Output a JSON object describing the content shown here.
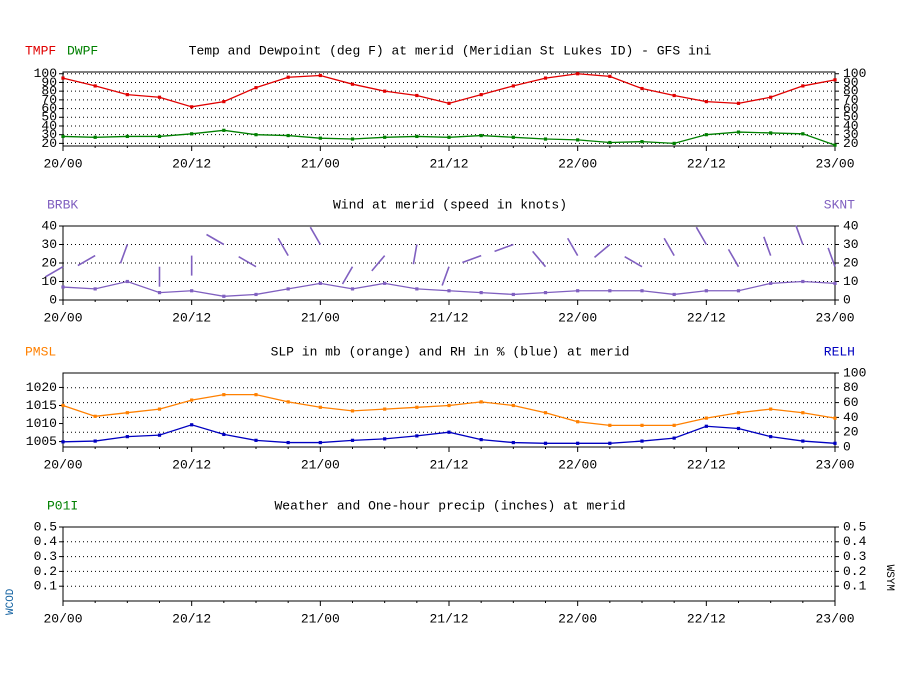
{
  "chart_data": [
    {
      "type": "line",
      "title": "Temp and Dewpoint (deg F) at merid (Meridian St Lukes ID) - GFS ini",
      "categories": [
        "20/00",
        null,
        null,
        null,
        "20/12",
        null,
        null,
        null,
        "21/00",
        null,
        null,
        null,
        "21/12",
        null,
        null,
        null,
        "22/00",
        null,
        null,
        null,
        "22/12",
        null,
        null,
        null,
        "23/00"
      ],
      "series": [
        {
          "name": "TMPF",
          "color": "#e00000",
          "values": [
            95,
            86,
            76,
            73,
            62,
            68,
            84,
            96,
            98,
            88,
            80,
            75,
            66,
            76,
            86,
            95,
            100,
            97,
            83,
            75,
            68,
            66,
            73,
            86,
            93
          ]
        },
        {
          "name": "DWPF",
          "color": "#008000",
          "values": [
            28,
            27,
            28,
            28,
            31,
            35,
            30,
            29,
            26,
            25,
            27,
            28,
            27,
            29,
            27,
            25,
            24,
            21,
            22,
            20,
            30,
            33,
            32,
            31,
            18
          ]
        }
      ],
      "ylim": [
        17,
        102
      ],
      "yticks": [
        20,
        30,
        40,
        50,
        60,
        70,
        80,
        90,
        100
      ],
      "y2lim": [
        17,
        102
      ],
      "y2ticks": [
        20,
        30,
        40,
        50,
        60,
        70,
        80,
        90,
        100
      ],
      "grid": true
    },
    {
      "type": "wind",
      "title": "Wind at  merid (speed in knots)",
      "categories": [
        "20/00",
        null,
        null,
        null,
        "20/12",
        null,
        null,
        null,
        "21/00",
        null,
        null,
        null,
        "21/12",
        null,
        null,
        null,
        "22/00",
        null,
        null,
        null,
        "22/12",
        null,
        null,
        null,
        "23/00"
      ],
      "series": [
        {
          "name": "SKNT",
          "color": "#8060c0",
          "axis": "y2",
          "values": [
            7,
            6,
            10,
            4,
            5,
            2,
            3,
            6,
            9,
            6,
            9,
            6,
            5,
            4,
            3,
            4,
            5,
            5,
            5,
            3,
            5,
            5,
            9,
            10,
            9
          ]
        }
      ],
      "barbs": {
        "name": "BRBK",
        "color": "#8060c0",
        "directions": [
          240,
          240,
          200,
          180,
          180,
          300,
          300,
          330,
          330,
          210,
          220,
          190,
          200,
          250,
          250,
          320,
          330,
          230,
          300,
          330,
          330,
          330,
          340,
          340,
          340
        ]
      },
      "ylim": [
        0,
        40
      ],
      "yticks": [
        0,
        10,
        20,
        30,
        40
      ],
      "y2lim": [
        0,
        40
      ],
      "y2ticks": [
        0,
        10,
        20,
        30,
        40
      ],
      "grid": true
    },
    {
      "type": "line",
      "title": "SLP in mb (orange) and RH in % (blue) at  merid",
      "categories": [
        "20/00",
        null,
        null,
        null,
        "20/12",
        null,
        null,
        null,
        "21/00",
        null,
        null,
        null,
        "21/12",
        null,
        null,
        null,
        "22/00",
        null,
        null,
        null,
        "22/12",
        null,
        null,
        null,
        "23/00"
      ],
      "series": [
        {
          "name": "PMSL",
          "color": "#ff8000",
          "values": [
            1015,
            1012,
            1013,
            1014,
            1016.5,
            1018,
            1018,
            1016,
            1014.5,
            1013.5,
            1014,
            1014.5,
            1015,
            1016,
            1015,
            1013,
            1010.5,
            1009.5,
            1009.5,
            1009.5,
            1011.5,
            1013,
            1014,
            1013,
            1011.5
          ]
        },
        {
          "name": "RELH",
          "color": "#0000c0",
          "axis": "y2",
          "values": [
            7,
            8,
            14,
            16,
            30,
            17,
            9,
            6,
            6,
            9,
            11,
            15,
            20,
            10,
            6,
            5,
            5,
            5,
            8,
            12,
            28,
            25,
            14,
            8,
            5
          ]
        }
      ],
      "ylim": [
        1003.5,
        1024
      ],
      "yticks": [
        1005,
        1010,
        1015,
        1020
      ],
      "y2lim": [
        0,
        100
      ],
      "y2ticks": [
        0,
        20,
        40,
        60,
        80,
        100
      ],
      "grid": true
    },
    {
      "type": "line",
      "title": "Weather and One-hour precip (inches) at  merid",
      "categories": [
        "20/00",
        null,
        null,
        null,
        "20/12",
        null,
        null,
        null,
        "21/00",
        null,
        null,
        null,
        "21/12",
        null,
        null,
        null,
        "22/00",
        null,
        null,
        null,
        "22/12",
        null,
        null,
        null,
        "23/00"
      ],
      "series": [
        {
          "name": "P01I",
          "color": "#008000",
          "values": [
            null,
            null,
            null,
            null,
            null,
            null,
            null,
            null,
            null,
            null,
            null,
            null,
            null,
            null,
            null,
            null,
            null,
            null,
            null,
            null,
            null,
            null,
            null,
            null,
            null
          ]
        }
      ],
      "y_label": "WCOD",
      "y2_label": "WSYM",
      "ylim": [
        0,
        0.5
      ],
      "yticks": [
        0.1,
        0.2,
        0.3,
        0.4,
        0.5
      ],
      "y2lim": [
        0,
        0.5
      ],
      "y2ticks": [
        0.1,
        0.2,
        0.3,
        0.4,
        0.5
      ],
      "grid": true
    }
  ]
}
